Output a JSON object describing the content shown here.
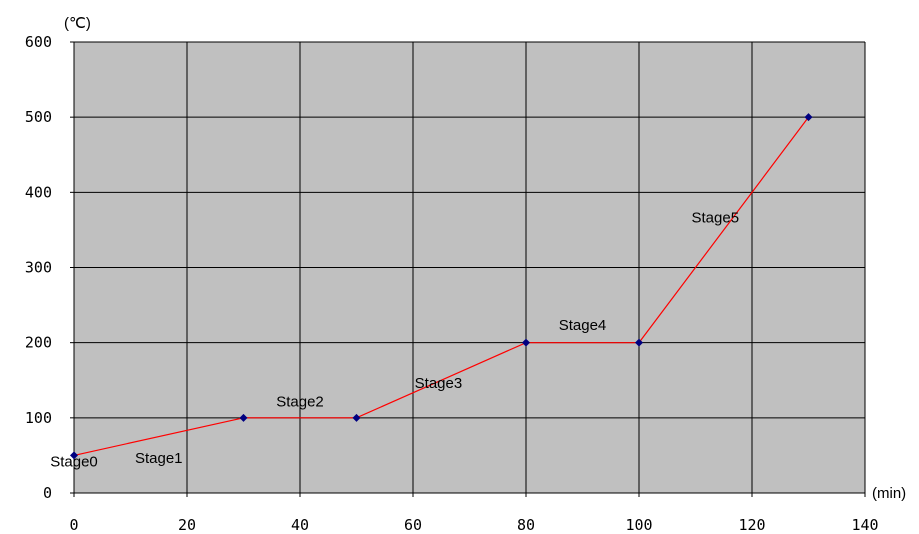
{
  "chart_data": {
    "type": "line",
    "x_unit": "(min)",
    "y_unit": "(℃)",
    "xlim": [
      0,
      140
    ],
    "ylim": [
      0,
      600
    ],
    "x_ticks": [
      0,
      20,
      40,
      60,
      80,
      100,
      120,
      140
    ],
    "y_ticks": [
      0,
      100,
      200,
      300,
      400,
      500,
      600
    ],
    "grid": true,
    "plot_background": "#c0c0c0",
    "series": [
      {
        "color": "#ff0000",
        "marker_color": "#000080",
        "points": [
          {
            "x": 0,
            "y": 50
          },
          {
            "x": 30,
            "y": 100
          },
          {
            "x": 50,
            "y": 100
          },
          {
            "x": 80,
            "y": 200
          },
          {
            "x": 100,
            "y": 200
          },
          {
            "x": 130,
            "y": 500
          }
        ]
      }
    ],
    "annotations": [
      {
        "text": "Stage0",
        "x": 0,
        "y": 35
      },
      {
        "text": "Stage1",
        "x": 15,
        "y": 40
      },
      {
        "text": "Stage2",
        "x": 40,
        "y": 115
      },
      {
        "text": "Stage3",
        "x": 64.5,
        "y": 140
      },
      {
        "text": "Stage4",
        "x": 90,
        "y": 217
      },
      {
        "text": "Stage5",
        "x": 113.5,
        "y": 360
      }
    ]
  }
}
